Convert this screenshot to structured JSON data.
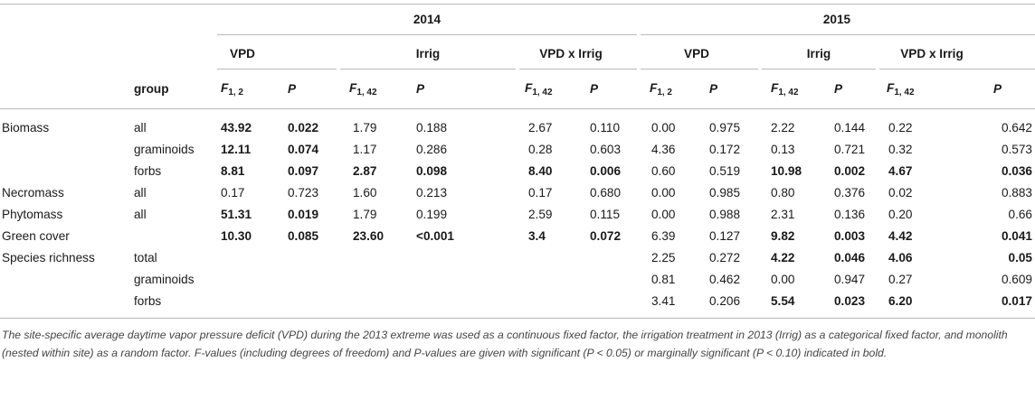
{
  "years": [
    "2014",
    "2015"
  ],
  "factors": [
    "VPD",
    "Irrig",
    "VPD x Irrig"
  ],
  "group_label": "group",
  "stat_F_1_2": {
    "base": "F",
    "sub": "1, 2"
  },
  "stat_F_1_42": {
    "base": "F",
    "sub": "1, 42"
  },
  "stat_P": "P",
  "rows": [
    {
      "response": "Biomass",
      "group": "all",
      "cells": [
        {
          "v": "43.92",
          "b": true
        },
        {
          "v": "0.022",
          "b": true
        },
        {
          "v": "1.79",
          "b": false
        },
        {
          "v": "0.188",
          "b": false
        },
        {
          "v": "2.67",
          "b": false
        },
        {
          "v": "0.110",
          "b": false
        },
        {
          "v": "0.00",
          "b": false
        },
        {
          "v": "0.975",
          "b": false
        },
        {
          "v": "2.22",
          "b": false
        },
        {
          "v": "0.144",
          "b": false
        },
        {
          "v": "0.22",
          "b": false
        },
        {
          "v": "0.642",
          "b": false
        }
      ]
    },
    {
      "response": "",
      "group": "graminoids",
      "cells": [
        {
          "v": "12.11",
          "b": true
        },
        {
          "v": "0.074",
          "b": true
        },
        {
          "v": "1.17",
          "b": false
        },
        {
          "v": "0.286",
          "b": false
        },
        {
          "v": "0.28",
          "b": false
        },
        {
          "v": "0.603",
          "b": false
        },
        {
          "v": "4.36",
          "b": false
        },
        {
          "v": "0.172",
          "b": false
        },
        {
          "v": "0.13",
          "b": false
        },
        {
          "v": "0.721",
          "b": false
        },
        {
          "v": "0.32",
          "b": false
        },
        {
          "v": "0.573",
          "b": false
        }
      ]
    },
    {
      "response": "",
      "group": "forbs",
      "cells": [
        {
          "v": "8.81",
          "b": true
        },
        {
          "v": "0.097",
          "b": true
        },
        {
          "v": "2.87",
          "b": true
        },
        {
          "v": "0.098",
          "b": true
        },
        {
          "v": "8.40",
          "b": true
        },
        {
          "v": "0.006",
          "b": true
        },
        {
          "v": "0.60",
          "b": false
        },
        {
          "v": "0.519",
          "b": false
        },
        {
          "v": "10.98",
          "b": true
        },
        {
          "v": "0.002",
          "b": true
        },
        {
          "v": "4.67",
          "b": true
        },
        {
          "v": "0.036",
          "b": true
        }
      ]
    },
    {
      "response": "Necromass",
      "group": "all",
      "cells": [
        {
          "v": "0.17",
          "b": false
        },
        {
          "v": "0.723",
          "b": false
        },
        {
          "v": "1.60",
          "b": false
        },
        {
          "v": "0.213",
          "b": false
        },
        {
          "v": "0.17",
          "b": false
        },
        {
          "v": "0.680",
          "b": false
        },
        {
          "v": "0.00",
          "b": false
        },
        {
          "v": "0.985",
          "b": false
        },
        {
          "v": "0.80",
          "b": false
        },
        {
          "v": "0.376",
          "b": false
        },
        {
          "v": "0.02",
          "b": false
        },
        {
          "v": "0.883",
          "b": false
        }
      ]
    },
    {
      "response": "Phytomass",
      "group": "all",
      "cells": [
        {
          "v": "51.31",
          "b": true
        },
        {
          "v": "0.019",
          "b": true
        },
        {
          "v": "1.79",
          "b": false
        },
        {
          "v": "0.199",
          "b": false
        },
        {
          "v": "2.59",
          "b": false
        },
        {
          "v": "0.115",
          "b": false
        },
        {
          "v": "0.00",
          "b": false
        },
        {
          "v": "0.988",
          "b": false
        },
        {
          "v": "2.31",
          "b": false
        },
        {
          "v": "0.136",
          "b": false
        },
        {
          "v": "0.20",
          "b": false
        },
        {
          "v": "0.66",
          "b": false
        }
      ]
    },
    {
      "response": "Green cover",
      "group": "",
      "cells": [
        {
          "v": "10.30",
          "b": true
        },
        {
          "v": "0.085",
          "b": true
        },
        {
          "v": "23.60",
          "b": true
        },
        {
          "v": "<0.001",
          "b": true
        },
        {
          "v": "3.4",
          "b": true
        },
        {
          "v": "0.072",
          "b": true
        },
        {
          "v": "6.39",
          "b": false
        },
        {
          "v": "0.127",
          "b": false
        },
        {
          "v": "9.82",
          "b": true
        },
        {
          "v": "0.003",
          "b": true
        },
        {
          "v": "4.42",
          "b": true
        },
        {
          "v": "0.041",
          "b": true
        }
      ]
    },
    {
      "response": "Species richness",
      "group": "total",
      "cells": [
        {
          "v": "",
          "b": false
        },
        {
          "v": "",
          "b": false
        },
        {
          "v": "",
          "b": false
        },
        {
          "v": "",
          "b": false
        },
        {
          "v": "",
          "b": false
        },
        {
          "v": "",
          "b": false
        },
        {
          "v": "2.25",
          "b": false
        },
        {
          "v": "0.272",
          "b": false
        },
        {
          "v": "4.22",
          "b": true
        },
        {
          "v": "0.046",
          "b": true
        },
        {
          "v": "4.06",
          "b": true
        },
        {
          "v": "0.05",
          "b": true
        }
      ]
    },
    {
      "response": "",
      "group": "graminoids",
      "cells": [
        {
          "v": "",
          "b": false
        },
        {
          "v": "",
          "b": false
        },
        {
          "v": "",
          "b": false
        },
        {
          "v": "",
          "b": false
        },
        {
          "v": "",
          "b": false
        },
        {
          "v": "",
          "b": false
        },
        {
          "v": "0.81",
          "b": false
        },
        {
          "v": "0.462",
          "b": false
        },
        {
          "v": "0.00",
          "b": false
        },
        {
          "v": "0.947",
          "b": false
        },
        {
          "v": "0.27",
          "b": false
        },
        {
          "v": "0.609",
          "b": false
        }
      ]
    },
    {
      "response": "",
      "group": "forbs",
      "cells": [
        {
          "v": "",
          "b": false
        },
        {
          "v": "",
          "b": false
        },
        {
          "v": "",
          "b": false
        },
        {
          "v": "",
          "b": false
        },
        {
          "v": "",
          "b": false
        },
        {
          "v": "",
          "b": false
        },
        {
          "v": "3.41",
          "b": false
        },
        {
          "v": "0.206",
          "b": false
        },
        {
          "v": "5.54",
          "b": true
        },
        {
          "v": "0.023",
          "b": true
        },
        {
          "v": "6.20",
          "b": true
        },
        {
          "v": "0.017",
          "b": true
        }
      ]
    }
  ],
  "footnote": "The site-specific average daytime vapor pressure deficit (VPD) during the 2013 extreme was used as a continuous fixed factor, the irrigation treatment in 2013 (Irrig) as a categorical fixed factor, and monolith (nested within site) as a random factor. F-values (including degrees of freedom) and P-values are given with significant (P < 0.05) or marginally significant (P < 0.10) indicated in bold."
}
